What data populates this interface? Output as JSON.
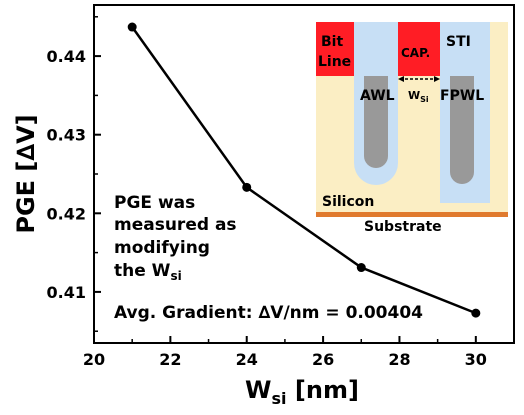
{
  "chart_data": {
    "type": "line",
    "xlabel": "W",
    "xlabel_sub": "si",
    "xlabel_unit": " [nm]",
    "ylabel": "PGE [∆V]",
    "xlim": [
      20,
      31
    ],
    "ylim": [
      0.4035,
      0.4465
    ],
    "x_ticks": [
      20,
      22,
      24,
      26,
      28,
      30
    ],
    "y_ticks": [
      0.41,
      0.42,
      0.43,
      0.44
    ],
    "series": [
      {
        "x": [
          21,
          24,
          27,
          30
        ],
        "values": [
          0.4437,
          0.4233,
          0.4131,
          0.4073
        ],
        "color": "#000000"
      }
    ],
    "annotation": {
      "line1": "PGE was",
      "line2": "measured as",
      "line3": "modifying",
      "line4_prefix": "the W",
      "line4_sub": "si",
      "gradient": "Avg. Gradient: ∆V/nm = 0.00404"
    },
    "inset": {
      "bitline_1": "Bit",
      "bitline_2": "Line",
      "cap": "CAP.",
      "sti": "STI",
      "awl": "AWL",
      "fpwl": "FPWL",
      "wsi_main": "W",
      "wsi_sub": "Si",
      "silicon": "Silicon",
      "substrate": "Substrate",
      "colors": {
        "silicon": "#fbeec4",
        "red": "#ff1d25",
        "sti_blue": "#c7dff5",
        "gate_gray": "#999999",
        "substrate_orange": "#e07a2e"
      }
    }
  }
}
